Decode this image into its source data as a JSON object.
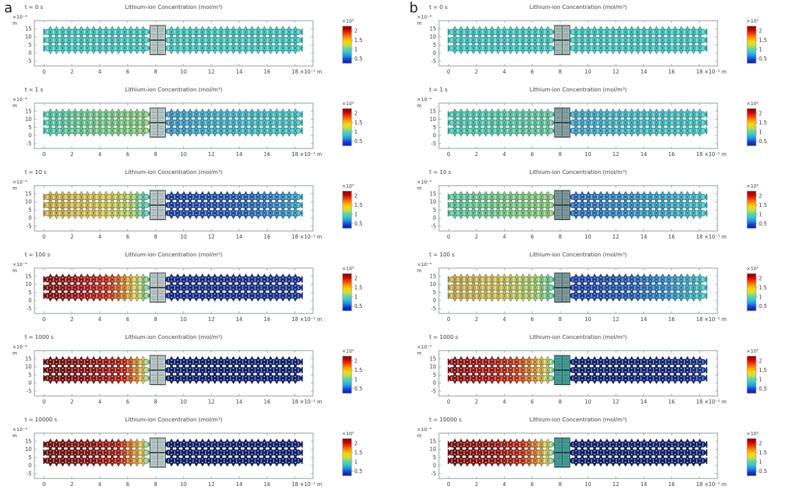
{
  "figure": {
    "panel_labels": [
      "a",
      "b"
    ],
    "subplot_title": "Lithium-ion Concentration (mol/m³)",
    "y_axis": {
      "unit_top": "×10⁻⁴",
      "unit_bottom": "m",
      "ticks": [
        "15",
        "10",
        "5",
        "0",
        "-5"
      ]
    },
    "x_axis": {
      "ticks": [
        "0",
        "2",
        "4",
        "6",
        "8",
        "10",
        "12",
        "14",
        "16",
        "18"
      ],
      "unit_suffix": "×10⁻⁵ m"
    },
    "colorbar": {
      "exponent": "×10³",
      "ticks": [
        "2",
        "1.5",
        "1",
        "0.5"
      ],
      "jet_stops": [
        [
          "0",
          "#7f0000"
        ],
        [
          "0.09",
          "#c00000"
        ],
        [
          "0.2",
          "#f03a00"
        ],
        [
          "0.3",
          "#ff9000"
        ],
        [
          "0.41",
          "#ffd400"
        ],
        [
          "0.52",
          "#bfe04e"
        ],
        [
          "0.62",
          "#5fd2a4"
        ],
        [
          "0.70",
          "#37c8d0"
        ],
        [
          "0.80",
          "#2492e0"
        ],
        [
          "0.90",
          "#143fd0"
        ],
        [
          "1",
          "#0a1e9e"
        ]
      ]
    },
    "columns": [
      {
        "label": "a",
        "panels": [
          {
            "time": "t = 0 s",
            "anode": [
              [
                "0",
                "#45c9c4"
              ],
              [
                "1",
                "#45c9c4"
              ]
            ],
            "cathode": [
              [
                "0",
                "#45c9c4"
              ],
              [
                "1",
                "#45c9c4"
              ]
            ],
            "sep": "#dde9e9"
          },
          {
            "time": "t = 1 s",
            "anode": [
              [
                "0",
                "#4fc9ad"
              ],
              [
                "0.5",
                "#76ca8d"
              ],
              [
                "1",
                "#88cb78"
              ]
            ],
            "cathode": [
              [
                "0",
                "#3d93c7"
              ],
              [
                "0.35",
                "#40adc8"
              ],
              [
                "1",
                "#45c6c3"
              ]
            ],
            "sep": "#dde9e9"
          },
          {
            "time": "t = 10 s",
            "anode": [
              [
                "0",
                "#d3ad49"
              ],
              [
                "0.55",
                "#dcc54d"
              ],
              [
                "0.82",
                "#b9cf60"
              ],
              [
                "0.93",
                "#66c9a4"
              ],
              [
                "1",
                "#48c4c2"
              ]
            ],
            "cathode": [
              [
                "0",
                "#1c3da6"
              ],
              [
                "0.5",
                "#2355b1"
              ],
              [
                "0.8",
                "#2f80c2"
              ],
              [
                "1",
                "#3fa8ca"
              ]
            ],
            "sep": "#dde9e9"
          },
          {
            "time": "t = 100 s",
            "anode": [
              [
                "0",
                "#800d0d"
              ],
              [
                "0.35",
                "#a81414"
              ],
              [
                "0.6",
                "#c62916"
              ],
              [
                "0.75",
                "#e07b22"
              ],
              [
                "0.86",
                "#e5cf4e"
              ],
              [
                "0.95",
                "#90cb72"
              ],
              [
                "1",
                "#4dc5c3"
              ]
            ],
            "cathode": [
              [
                "0",
                "#17288c"
              ],
              [
                "1",
                "#1c3292"
              ]
            ],
            "sep": "#dde9e9"
          },
          {
            "time": "t = 1000 s",
            "anode": [
              [
                "0",
                "#700b0b"
              ],
              [
                "0.5",
                "#9a1111"
              ],
              [
                "0.75",
                "#bc1d12"
              ],
              [
                "0.86",
                "#dd7b22"
              ],
              [
                "0.94",
                "#e1d04f"
              ],
              [
                "1",
                "#53c6c0"
              ]
            ],
            "cathode": [
              [
                "0",
                "#111d70"
              ],
              [
                "1",
                "#142076"
              ]
            ],
            "sep": "#dde9e9"
          },
          {
            "time": "t = 10000 s",
            "anode": [
              [
                "0",
                "#710b0b"
              ],
              [
                "0.45",
                "#900f0f"
              ],
              [
                "0.7",
                "#b31a12"
              ],
              [
                "0.83",
                "#da7b24"
              ],
              [
                "0.93",
                "#e0cf50"
              ],
              [
                "1",
                "#50c5c1"
              ]
            ],
            "cathode": [
              [
                "0",
                "#101c6c"
              ],
              [
                "1",
                "#131f73"
              ]
            ],
            "sep": "#dde9e9"
          }
        ]
      },
      {
        "label": "b",
        "panels": [
          {
            "time": "t = 0 s",
            "anode": [
              [
                "0",
                "#43c8c5"
              ],
              [
                "1",
                "#43c8c5"
              ]
            ],
            "cathode": [
              [
                "0",
                "#43c8c5"
              ],
              [
                "1",
                "#43c8c5"
              ]
            ],
            "sep": "#c7dada"
          },
          {
            "time": "t = 1 s",
            "anode": [
              [
                "0",
                "#4ac8b5"
              ],
              [
                "0.7",
                "#5cc9a4"
              ],
              [
                "1",
                "#65c99e"
              ]
            ],
            "cathode": [
              [
                "0",
                "#3fa0c8"
              ],
              [
                "0.4",
                "#42b7c7"
              ],
              [
                "1",
                "#45c6c3"
              ]
            ],
            "sep": "#9dbcbe"
          },
          {
            "time": "t = 10 s",
            "anode": [
              [
                "0",
                "#5ec9a1"
              ],
              [
                "0.6",
                "#7dca84"
              ],
              [
                "1",
                "#8bcb73"
              ]
            ],
            "cathode": [
              [
                "0",
                "#2b64bc"
              ],
              [
                "0.5",
                "#3391c6"
              ],
              [
                "1",
                "#43bfc6"
              ]
            ],
            "sep": "#93b0b3"
          },
          {
            "time": "t = 100 s",
            "anode": [
              [
                "0",
                "#cdab4c"
              ],
              [
                "0.5",
                "#d5c051"
              ],
              [
                "0.82",
                "#a8cd65"
              ],
              [
                "0.95",
                "#70ca91"
              ],
              [
                "1",
                "#55c6b8"
              ]
            ],
            "cathode": [
              [
                "0",
                "#1c3ba5"
              ],
              [
                "0.45",
                "#2358b2"
              ],
              [
                "0.75",
                "#3492c6"
              ],
              [
                "1",
                "#45c4c4"
              ]
            ],
            "sep": "#93b0b3"
          },
          {
            "time": "t = 1000 s",
            "anode": [
              [
                "0",
                "#901010"
              ],
              [
                "0.4",
                "#ac1512"
              ],
              [
                "0.65",
                "#c73c17"
              ],
              [
                "0.82",
                "#dd9830"
              ],
              [
                "0.92",
                "#dacd52"
              ],
              [
                "1",
                "#5ac8b3"
              ]
            ],
            "cathode": [
              [
                "0",
                "#112070"
              ],
              [
                "0.85",
                "#16277e"
              ],
              [
                "1",
                "#1c3b9b"
              ]
            ],
            "sep": "#4fb3ae"
          },
          {
            "time": "t = 10000 s",
            "anode": [
              [
                "0",
                "#7d0c0c"
              ],
              [
                "0.45",
                "#9b1111"
              ],
              [
                "0.7",
                "#c02a14"
              ],
              [
                "0.84",
                "#dc8b2a"
              ],
              [
                "0.93",
                "#ddd052"
              ],
              [
                "1",
                "#56c7b9"
              ]
            ],
            "cathode": [
              [
                "0",
                "#101e6d"
              ],
              [
                "1",
                "#132070"
              ]
            ],
            "sep": "#4fb3ae"
          }
        ]
      }
    ]
  },
  "chart_data": [
    {
      "type": "heatmap",
      "panel": "a",
      "title": "Lithium-ion Concentration (mol/m³)",
      "x_unit": "×10⁻⁵ m",
      "y_unit": "×10⁻⁴ m",
      "value_unit": "×10³ mol/m³",
      "x_ticks": [
        0,
        2,
        4,
        6,
        8,
        10,
        12,
        14,
        16,
        18
      ],
      "y_ticks": [
        15,
        10,
        5,
        0,
        -5
      ],
      "colorbar_range": [
        0.25,
        2.25
      ],
      "colorbar_ticks": [
        0.5,
        1,
        1.5,
        2
      ],
      "colormap": "jet",
      "separator_x": [
        7.6,
        8.7
      ],
      "snapshots": [
        {
          "t_s": 0,
          "anode": {
            "x": [
              0,
              7.5
            ],
            "c": [
              1.0,
              1.0
            ]
          },
          "cathode": {
            "x": [
              8.7,
              18.5
            ],
            "c": [
              1.0,
              1.0
            ]
          }
        },
        {
          "t_s": 1,
          "anode": {
            "x": [
              0,
              4,
              7.5
            ],
            "c": [
              1.05,
              1.15,
              1.2
            ]
          },
          "cathode": {
            "x": [
              8.7,
              12,
              18.5
            ],
            "c": [
              0.85,
              0.95,
              1.0
            ]
          }
        },
        {
          "t_s": 10,
          "anode": {
            "x": [
              0,
              4,
              6.8,
              7.5
            ],
            "c": [
              1.55,
              1.5,
              1.25,
              1.0
            ]
          },
          "cathode": {
            "x": [
              8.7,
              14,
              18.5
            ],
            "c": [
              0.4,
              0.55,
              0.8
            ]
          }
        },
        {
          "t_s": 100,
          "anode": {
            "x": [
              0,
              3,
              5,
              6.3,
              7,
              7.5
            ],
            "c": [
              2.1,
              1.95,
              1.7,
              1.45,
              1.2,
              1.0
            ]
          },
          "cathode": {
            "x": [
              8.7,
              18.5
            ],
            "c": [
              0.32,
              0.3
            ]
          }
        },
        {
          "t_s": 1000,
          "anode": {
            "x": [
              0,
              4,
              6,
              6.8,
              7.3,
              7.5
            ],
            "c": [
              2.2,
              2.1,
              1.85,
              1.55,
              1.25,
              1.05
            ]
          },
          "cathode": {
            "x": [
              8.7,
              18.5
            ],
            "c": [
              0.28,
              0.27
            ]
          }
        },
        {
          "t_s": 10000,
          "anode": {
            "x": [
              0,
              4,
              6,
              6.8,
              7.3,
              7.5
            ],
            "c": [
              2.2,
              2.15,
              1.9,
              1.6,
              1.3,
              1.0
            ]
          },
          "cathode": {
            "x": [
              8.7,
              18.5
            ],
            "c": [
              0.25,
              0.25
            ]
          }
        }
      ]
    },
    {
      "type": "heatmap",
      "panel": "b",
      "title": "Lithium-ion Concentration (mol/m³)",
      "x_unit": "×10⁻⁵ m",
      "y_unit": "×10⁻⁴ m",
      "value_unit": "×10³ mol/m³",
      "x_ticks": [
        0,
        2,
        4,
        6,
        8,
        10,
        12,
        14,
        16,
        18
      ],
      "y_ticks": [
        15,
        10,
        5,
        0,
        -5
      ],
      "colorbar_range": [
        0.25,
        2.25
      ],
      "colorbar_ticks": [
        0.5,
        1,
        1.5,
        2
      ],
      "colormap": "jet",
      "separator_x": [
        7.6,
        8.7
      ],
      "snapshots": [
        {
          "t_s": 0,
          "anode": {
            "x": [
              0,
              7.5
            ],
            "c": [
              1.0,
              1.0
            ]
          },
          "cathode": {
            "x": [
              8.7,
              18.5
            ],
            "c": [
              1.0,
              1.0
            ]
          }
        },
        {
          "t_s": 1,
          "anode": {
            "x": [
              0,
              4,
              7.5
            ],
            "c": [
              1.02,
              1.08,
              1.1
            ]
          },
          "cathode": {
            "x": [
              8.7,
              12,
              18.5
            ],
            "c": [
              0.9,
              0.97,
              1.0
            ]
          }
        },
        {
          "t_s": 10,
          "anode": {
            "x": [
              0,
              4,
              7.5
            ],
            "c": [
              1.15,
              1.25,
              1.3
            ]
          },
          "cathode": {
            "x": [
              8.7,
              14,
              18.5
            ],
            "c": [
              0.6,
              0.8,
              0.95
            ]
          }
        },
        {
          "t_s": 100,
          "anode": {
            "x": [
              0,
              4,
              6.5,
              7.5
            ],
            "c": [
              1.5,
              1.45,
              1.3,
              1.05
            ]
          },
          "cathode": {
            "x": [
              8.7,
              12,
              15,
              18.5
            ],
            "c": [
              0.4,
              0.55,
              0.75,
              0.95
            ]
          }
        },
        {
          "t_s": 1000,
          "anode": {
            "x": [
              0,
              3,
              5.5,
              6.8,
              7.3,
              7.5
            ],
            "c": [
              2.0,
              1.9,
              1.7,
              1.45,
              1.25,
              1.1
            ]
          },
          "cathode": {
            "x": [
              8.7,
              16,
              18.5
            ],
            "c": [
              0.3,
              0.32,
              0.45
            ]
          }
        },
        {
          "t_s": 10000,
          "anode": {
            "x": [
              0,
              3,
              5.5,
              6.8,
              7.3,
              7.5
            ],
            "c": [
              2.1,
              2.0,
              1.8,
              1.5,
              1.25,
              1.0
            ]
          },
          "cathode": {
            "x": [
              8.7,
              18.5
            ],
            "c": [
              0.28,
              0.28
            ]
          }
        }
      ]
    }
  ]
}
